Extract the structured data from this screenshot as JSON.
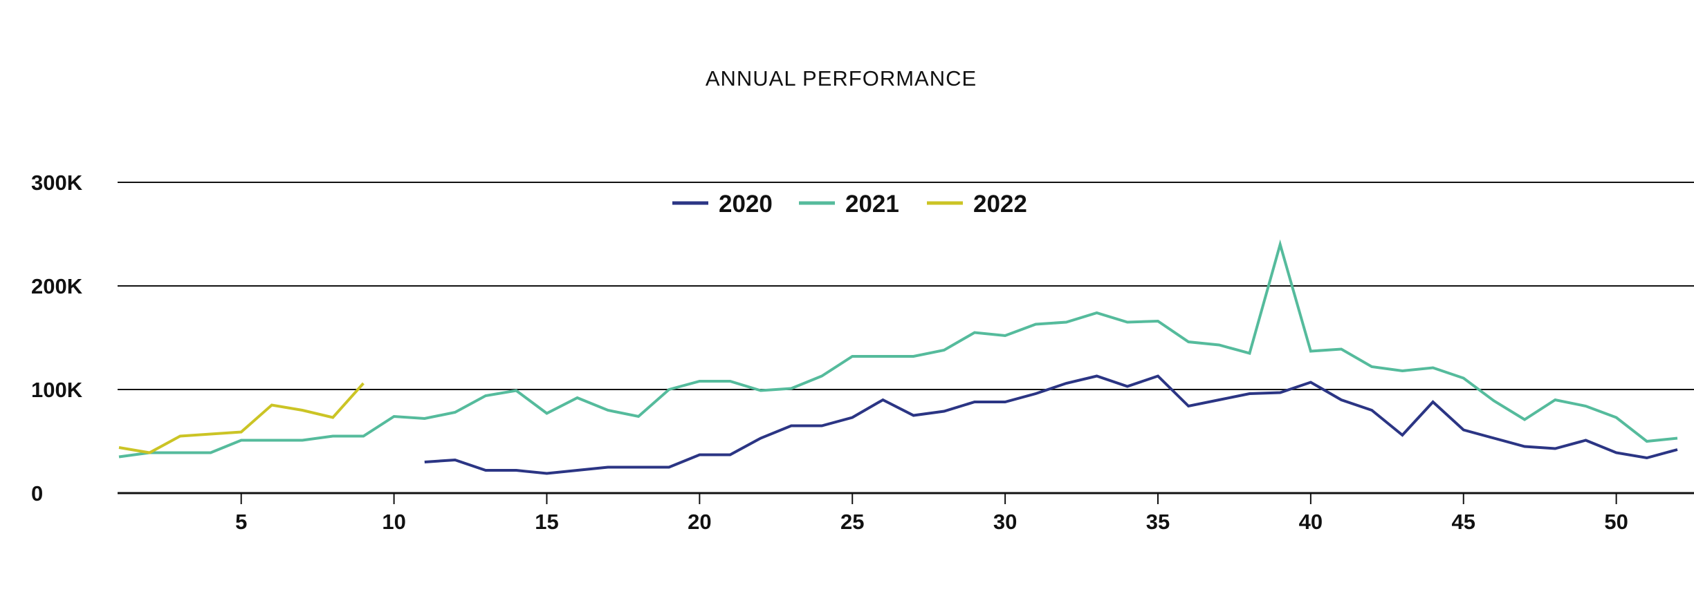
{
  "chart_data": {
    "type": "line",
    "title": "ANNUAL PERFORMANCE",
    "xlabel": "",
    "ylabel": "",
    "xlim": [
      1,
      52
    ],
    "ylim": [
      0,
      300000
    ],
    "x_ticks": [
      5,
      10,
      15,
      20,
      25,
      30,
      35,
      40,
      45,
      50
    ],
    "y_ticks": [
      {
        "value": 0,
        "label": "0"
      },
      {
        "value": 100000,
        "label": "100K"
      },
      {
        "value": 200000,
        "label": "200K"
      },
      {
        "value": 300000,
        "label": "300K"
      }
    ],
    "grid": "horizontal",
    "legend_position": "top-center",
    "series": [
      {
        "name": "2020",
        "color": "#2b3584",
        "x": [
          11,
          12,
          13,
          14,
          15,
          16,
          17,
          18,
          19,
          20,
          21,
          22,
          23,
          24,
          25,
          26,
          27,
          28,
          29,
          30,
          31,
          32,
          33,
          34,
          35,
          36,
          37,
          38,
          39,
          40,
          41,
          42,
          43,
          44,
          45,
          46,
          47,
          48,
          49,
          50,
          51,
          52
        ],
        "values": [
          30000,
          32000,
          22000,
          22000,
          19000,
          22000,
          25000,
          25000,
          25000,
          37000,
          37000,
          53000,
          65000,
          65000,
          73000,
          90000,
          75000,
          79000,
          88000,
          88000,
          96000,
          106000,
          113000,
          103000,
          113000,
          84000,
          90000,
          96000,
          97000,
          107000,
          90000,
          80000,
          56000,
          88000,
          61000,
          53000,
          45000,
          43000,
          51000,
          39000,
          34000,
          42000
        ]
      },
      {
        "name": "2021",
        "color": "#55bb9c",
        "x": [
          1,
          2,
          3,
          4,
          5,
          6,
          7,
          8,
          9,
          10,
          11,
          12,
          13,
          14,
          15,
          16,
          17,
          18,
          19,
          20,
          21,
          22,
          23,
          24,
          25,
          26,
          27,
          28,
          29,
          30,
          31,
          32,
          33,
          34,
          35,
          36,
          37,
          38,
          39,
          40,
          41,
          42,
          43,
          44,
          45,
          46,
          47,
          48,
          49,
          50,
          51,
          52
        ],
        "values": [
          35000,
          39000,
          39000,
          39000,
          51000,
          51000,
          51000,
          55000,
          55000,
          74000,
          72000,
          78000,
          94000,
          99000,
          77000,
          92000,
          80000,
          74000,
          100000,
          108000,
          108000,
          99000,
          101000,
          113000,
          132000,
          132000,
          132000,
          138000,
          155000,
          152000,
          163000,
          165000,
          174000,
          165000,
          166000,
          146000,
          143000,
          135000,
          240000,
          137000,
          139000,
          122000,
          118000,
          121000,
          111000,
          89000,
          71000,
          90000,
          84000,
          73000,
          50000,
          53000
        ]
      },
      {
        "name": "2022",
        "color": "#cbc425",
        "x": [
          1,
          2,
          3,
          4,
          5,
          6,
          7,
          8,
          9
        ],
        "values": [
          44000,
          39000,
          55000,
          57000,
          59000,
          85000,
          80000,
          73000,
          106000
        ]
      }
    ]
  }
}
